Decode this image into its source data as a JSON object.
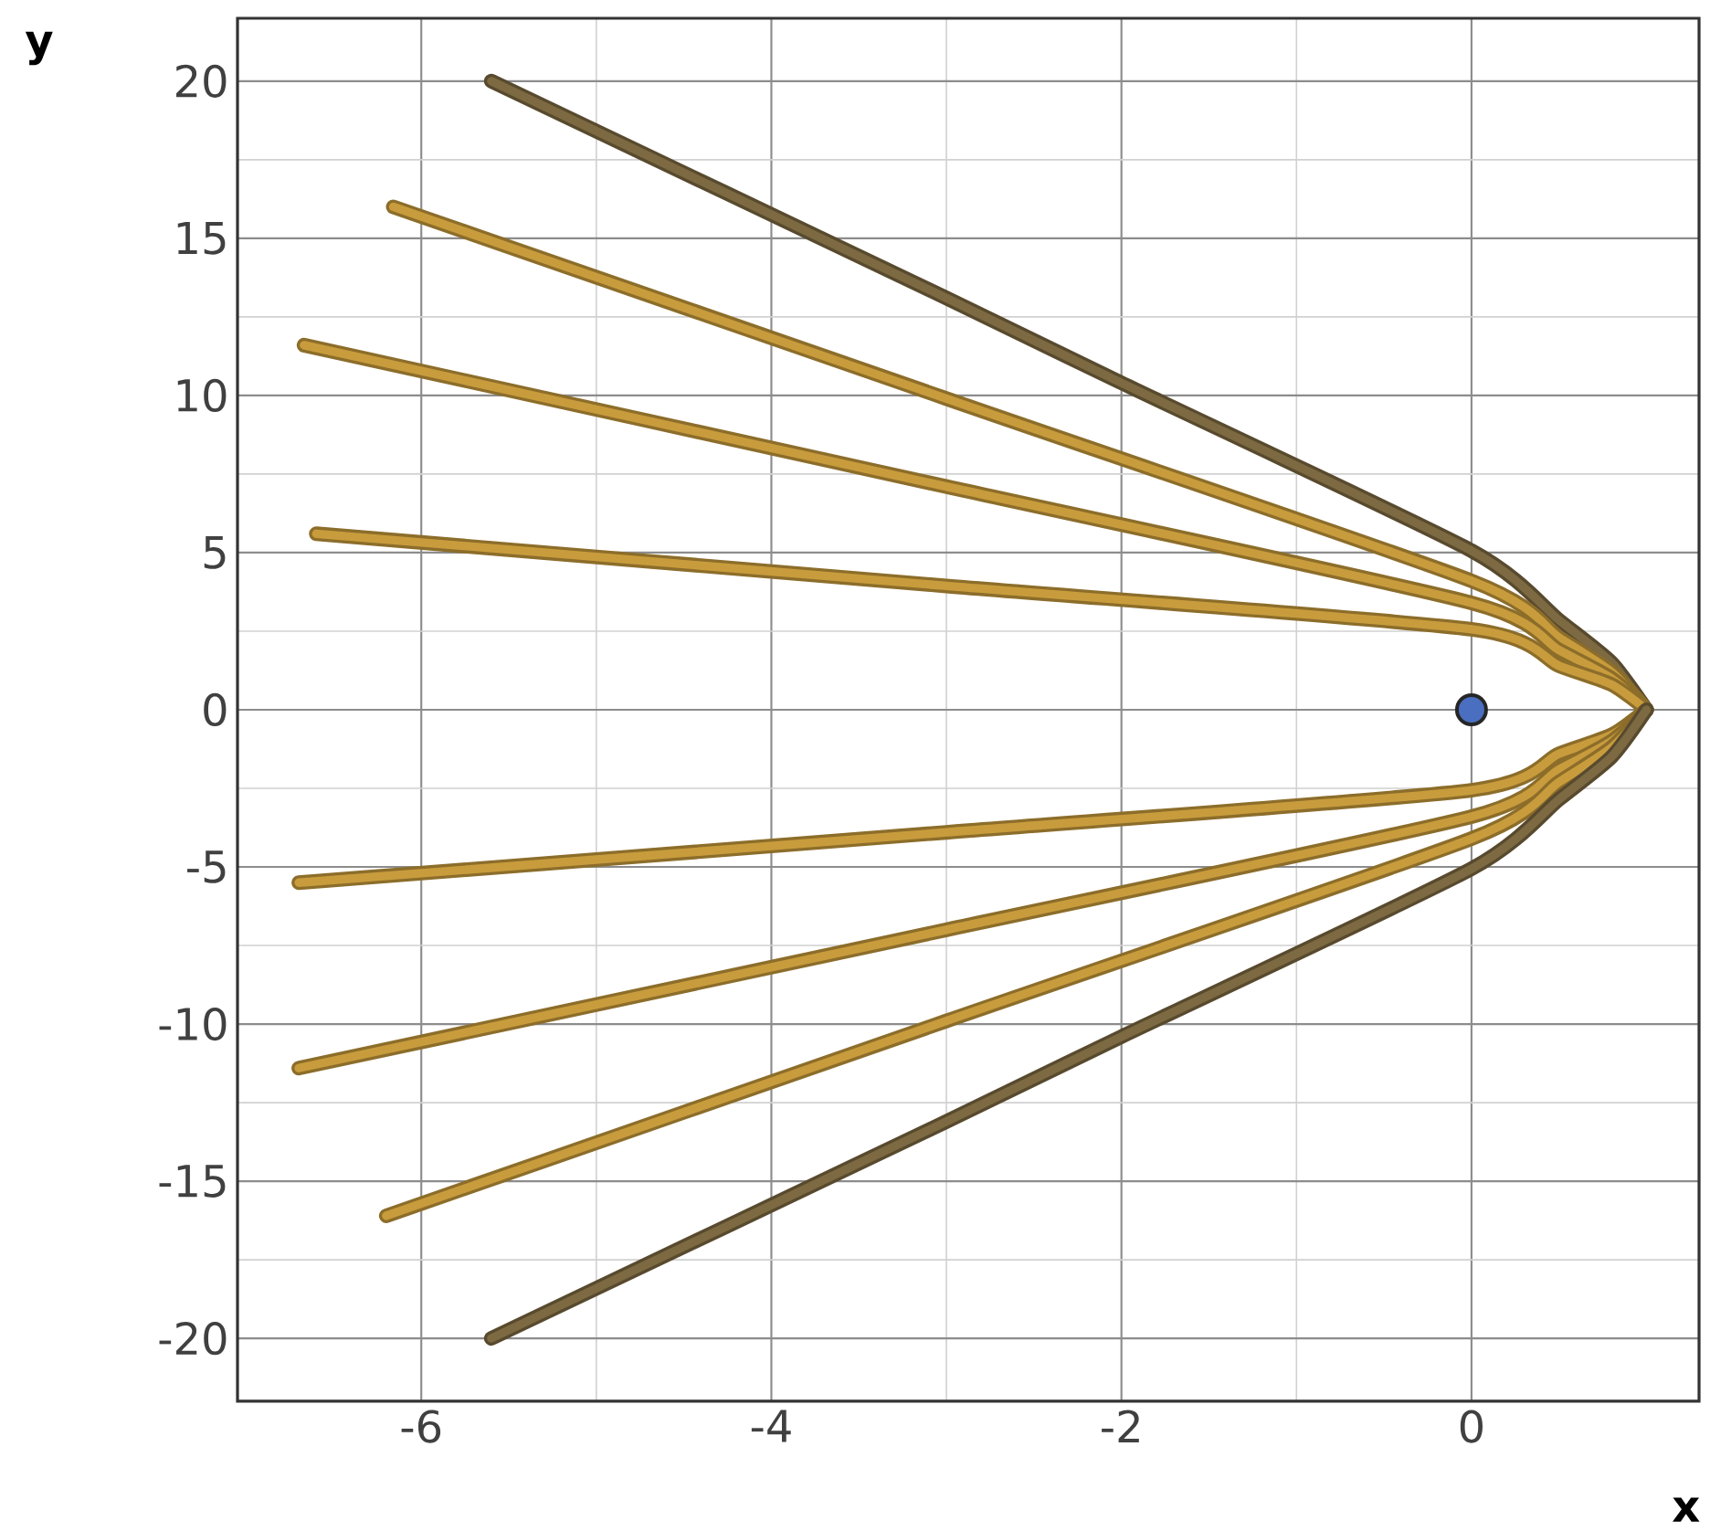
{
  "chart_data": {
    "type": "line",
    "xlabel": "x",
    "ylabel": "y",
    "xlim": [
      -7.05,
      1.3
    ],
    "ylim": [
      -22,
      22
    ],
    "xticks": [
      -6,
      -4,
      -2,
      0
    ],
    "yticks": [
      -20,
      -15,
      -10,
      -5,
      0,
      5,
      10,
      15,
      20
    ],
    "grid": true,
    "series": [
      {
        "color": "#7d6a42",
        "x": [
          -5.6,
          -3,
          -2,
          0,
          0.5,
          0.8,
          1
        ],
        "values": [
          20,
          13.1,
          10.4,
          5.06,
          2.85,
          1.5,
          0
        ]
      },
      {
        "color": "#c89c3c",
        "x": [
          -6.16,
          -3,
          0,
          0.5,
          0.8,
          1
        ],
        "values": [
          16,
          9.9,
          4.1,
          2.3,
          1.2,
          0
        ]
      },
      {
        "color": "#c89c3c",
        "x": [
          -6.67,
          -3,
          0,
          0.5,
          0.8,
          1
        ],
        "values": [
          11.6,
          7.1,
          3.4,
          1.9,
          1.0,
          0
        ]
      },
      {
        "color": "#c89c3c",
        "x": [
          -6.6,
          -3,
          0,
          0.5,
          0.8,
          1
        ],
        "values": [
          5.6,
          3.94,
          2.56,
          1.4,
          0.8,
          0
        ]
      },
      {
        "color": "#c89c3c",
        "x": [
          -6.7,
          -3,
          0,
          0.5,
          0.8,
          1
        ],
        "values": [
          -5.5,
          -3.9,
          -2.56,
          -1.4,
          -0.8,
          0
        ]
      },
      {
        "color": "#c89c3c",
        "x": [
          -6.7,
          -3,
          0,
          0.5,
          0.8,
          1
        ],
        "values": [
          -11.4,
          -7.0,
          -3.4,
          -1.9,
          -1.0,
          0
        ]
      },
      {
        "color": "#c89c3c",
        "x": [
          -6.2,
          -3,
          0,
          0.5,
          0.8,
          1
        ],
        "values": [
          -16.1,
          -9.9,
          -4.1,
          -2.3,
          -1.2,
          0
        ]
      },
      {
        "color": "#7d6a42",
        "x": [
          -5.6,
          -3,
          -2,
          0,
          0.5,
          0.8,
          1
        ],
        "values": [
          -20,
          -13.1,
          -10.4,
          -5.06,
          -2.85,
          -1.5,
          0
        ]
      },
      {
        "type": "scatter",
        "color": "#4a6fc0",
        "x": [
          0
        ],
        "values": [
          0
        ]
      }
    ]
  }
}
